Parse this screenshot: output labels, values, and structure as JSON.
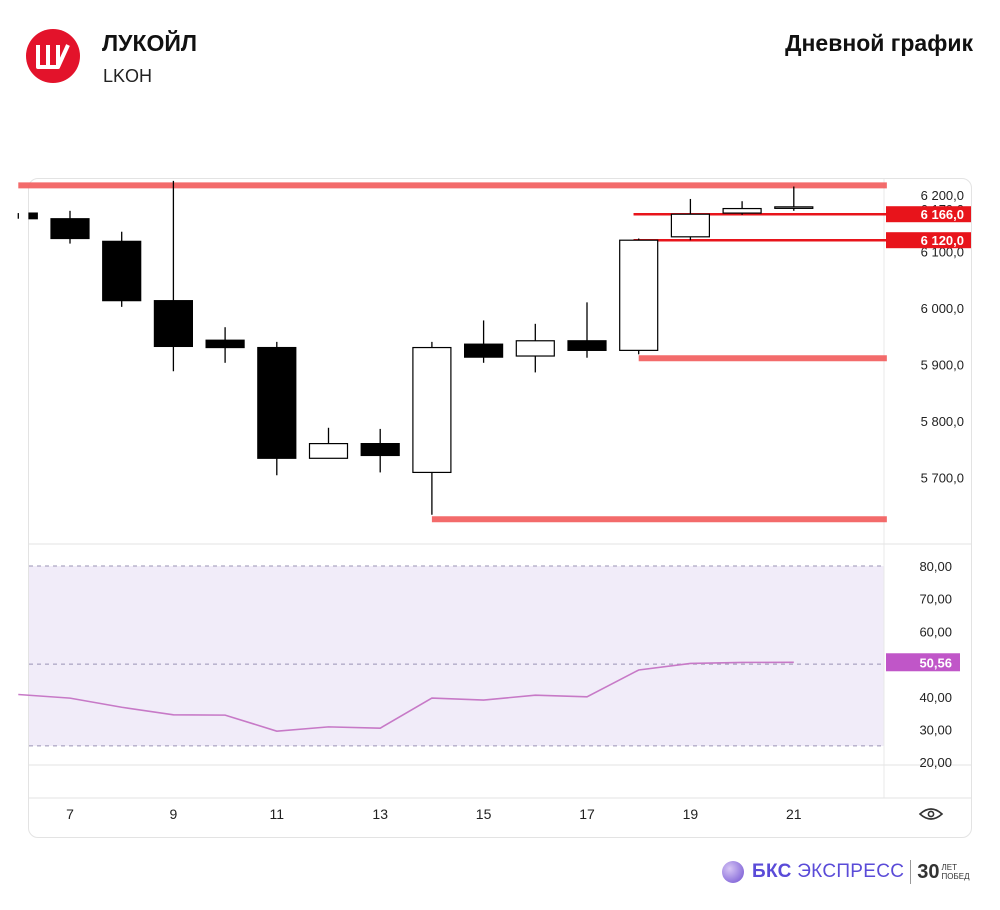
{
  "header": {
    "company": "ЛУКОЙЛ",
    "ticker": "LKOH",
    "chart_title": "Дневной график",
    "logo_icon": "lukoil-logo-icon"
  },
  "footer": {
    "brand_bold": "БКС",
    "brand_rest": " ЭКСПРЕСС",
    "anniv_number": "30",
    "anniv_line1": "ЛЕТ",
    "anniv_line2": "ПОБЕД"
  },
  "colors": {
    "bear": "#000000",
    "bull": "#ffffff",
    "level_soft": "#f26363",
    "level_strong": "#e8141b",
    "rsi_line": "#c779c7",
    "rsi_band": "#f1ecf9",
    "rsi_badge": "#c056c8"
  },
  "chart_data": [
    {
      "type": "candlestick",
      "x_tick_labels": [
        "7",
        "9",
        "11",
        "13",
        "15",
        "17",
        "19",
        "21"
      ],
      "x_ticks": [
        7,
        9,
        11,
        13,
        15,
        17,
        19,
        21
      ],
      "y_tick_labels": [
        "6 200,0",
        "6 100,0",
        "6 000,0",
        "5 900,0",
        "5 800,0",
        "5 700,0"
      ],
      "y_ticks": [
        6200,
        6100,
        6000,
        5900,
        5800,
        5700
      ],
      "ylim": [
        5570,
        6222
      ],
      "candles": [
        {
          "x": 6,
          "o": 6168,
          "h": 6168,
          "l": 6158,
          "c": 6158
        },
        {
          "x": 7,
          "o": 6158,
          "h": 6172,
          "l": 6114,
          "c": 6123
        },
        {
          "x": 8,
          "o": 6118,
          "h": 6135,
          "l": 6002,
          "c": 6013
        },
        {
          "x": 9,
          "o": 6013,
          "h": 6225,
          "l": 5888,
          "c": 5932
        },
        {
          "x": 10,
          "o": 5943,
          "h": 5966,
          "l": 5903,
          "c": 5930
        },
        {
          "x": 11,
          "o": 5930,
          "h": 5940,
          "l": 5704,
          "c": 5734
        },
        {
          "x": 12,
          "o": 5734,
          "h": 5788,
          "l": 5734,
          "c": 5760
        },
        {
          "x": 13,
          "o": 5760,
          "h": 5786,
          "l": 5709,
          "c": 5739
        },
        {
          "x": 14,
          "o": 5709,
          "h": 5940,
          "l": 5634,
          "c": 5930
        },
        {
          "x": 15,
          "o": 5936,
          "h": 5978,
          "l": 5903,
          "c": 5913
        },
        {
          "x": 16,
          "o": 5915,
          "h": 5972,
          "l": 5886,
          "c": 5942
        },
        {
          "x": 17,
          "o": 5942,
          "h": 6010,
          "l": 5912,
          "c": 5925
        },
        {
          "x": 18,
          "o": 5925,
          "h": 6123,
          "l": 5918,
          "c": 6120
        },
        {
          "x": 19,
          "o": 6126,
          "h": 6193,
          "l": 6120,
          "c": 6166
        },
        {
          "x": 20,
          "o": 6168,
          "h": 6189,
          "l": 6165,
          "c": 6176
        },
        {
          "x": 21,
          "o": 6179,
          "h": 6215,
          "l": 6172,
          "c": 6179
        }
      ],
      "level_labels": [
        {
          "price": 6166,
          "label": "6 166,0"
        },
        {
          "price": 6120,
          "label": "6 120,0"
        }
      ],
      "current_price_label": "6 179,0",
      "levels": [
        {
          "price": 6217,
          "from_x": 6.0,
          "to_x": 22.8,
          "style": "soft"
        },
        {
          "price": 6166,
          "from_x": 17.9,
          "to_x": 22.8,
          "style": "strong"
        },
        {
          "price": 6120,
          "from_x": 17.9,
          "to_x": 22.8,
          "style": "strong"
        },
        {
          "price": 5911,
          "from_x": 18.0,
          "to_x": 22.8,
          "style": "soft"
        },
        {
          "price": 5626,
          "from_x": 14.0,
          "to_x": 22.8,
          "style": "soft"
        }
      ]
    },
    {
      "type": "line",
      "indicator": "RSI",
      "y_tick_labels": [
        "80,00",
        "70,00",
        "60,00",
        "40,00",
        "30,00",
        "20,00"
      ],
      "y_ticks": [
        80,
        70,
        60,
        40,
        30,
        20
      ],
      "ylim": [
        19,
        86
      ],
      "band": [
        25,
        80
      ],
      "midline": 50,
      "current_value_label": "50,56",
      "series": [
        {
          "x": [
            6,
            7,
            8,
            9,
            10,
            11,
            12,
            13,
            14,
            15,
            16,
            17,
            18,
            19,
            20,
            21
          ],
          "values": [
            40.7,
            39.6,
            36.8,
            34.5,
            34.4,
            29.5,
            30.8,
            30.4,
            39.6,
            39.0,
            40.5,
            40.0,
            48.2,
            50.2,
            50.5,
            50.56
          ]
        }
      ]
    }
  ]
}
